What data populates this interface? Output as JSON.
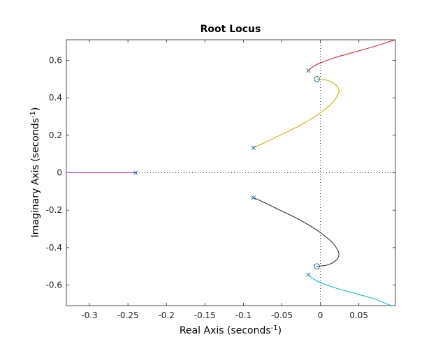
{
  "chart_data": {
    "type": "line",
    "title": "Root Locus",
    "xlabel": {
      "text": "Real Axis (seconds",
      "sup": "-1",
      "close": ")"
    },
    "ylabel": {
      "text": "Imaginary Axis (seconds",
      "sup": "-1",
      "close": ")"
    },
    "xlim": [
      -0.33,
      0.0975
    ],
    "ylim": [
      -0.71,
      0.71
    ],
    "xticks": [
      -0.3,
      -0.25,
      -0.2,
      -0.15,
      -0.1,
      -0.05,
      0,
      0.05
    ],
    "xtick_labels": [
      "-0.3",
      "-0.25",
      "-0.2",
      "-0.15",
      "-0.1",
      "-0.05",
      "0",
      "0.05"
    ],
    "yticks": [
      -0.6,
      -0.4,
      -0.2,
      0,
      0.2,
      0.4,
      0.6
    ],
    "ytick_labels": [
      "-0.6",
      "-0.4",
      "-0.2",
      "0",
      "0.2",
      "0.4",
      "0.6"
    ],
    "grid": false,
    "reference_lines": [
      "x=0 dotted",
      "y=0 dotted"
    ],
    "poles": [
      {
        "x": -0.24,
        "y": 0
      },
      {
        "x": -0.087,
        "y": 0.133
      },
      {
        "x": -0.087,
        "y": -0.133
      },
      {
        "x": -0.0155,
        "y": 0.545
      },
      {
        "x": -0.0155,
        "y": -0.545
      }
    ],
    "zeros": [
      {
        "x": -0.0045,
        "y": 0.5
      },
      {
        "x": -0.0045,
        "y": -0.5
      }
    ],
    "series": [
      {
        "color": "#d62728",
        "x": [
          -0.0155,
          -0.009,
          0.002,
          0.02,
          0.045,
          0.07,
          0.0975
        ],
        "y": [
          0.545,
          0.568,
          0.59,
          0.616,
          0.645,
          0.674,
          0.71
        ]
      },
      {
        "color": "#c9b500",
        "x": [
          -0.087,
          -0.07,
          -0.05,
          -0.03,
          -0.01,
          0.005,
          0.017,
          0.024,
          0.021,
          0.01,
          -0.0045
        ],
        "y": [
          0.133,
          0.165,
          0.205,
          0.245,
          0.292,
          0.335,
          0.38,
          0.43,
          0.465,
          0.492,
          0.5
        ]
      },
      {
        "color": "#333333",
        "x": [
          -0.087,
          -0.07,
          -0.05,
          -0.03,
          -0.01,
          0.005,
          0.017,
          0.024,
          0.021,
          0.01,
          -0.0045
        ],
        "y": [
          -0.133,
          -0.165,
          -0.205,
          -0.245,
          -0.292,
          -0.335,
          -0.38,
          -0.43,
          -0.465,
          -0.492,
          -0.5
        ]
      },
      {
        "color": "#17becf",
        "x": [
          -0.0155,
          -0.009,
          0.002,
          0.02,
          0.045,
          0.07,
          0.092
        ],
        "y": [
          -0.545,
          -0.568,
          -0.59,
          -0.616,
          -0.645,
          -0.674,
          -0.71
        ]
      },
      {
        "color": "#c639c6",
        "x": [
          -0.33,
          -0.24
        ],
        "y": [
          0,
          0
        ]
      }
    ],
    "marker_color": "#1f6fa0"
  }
}
